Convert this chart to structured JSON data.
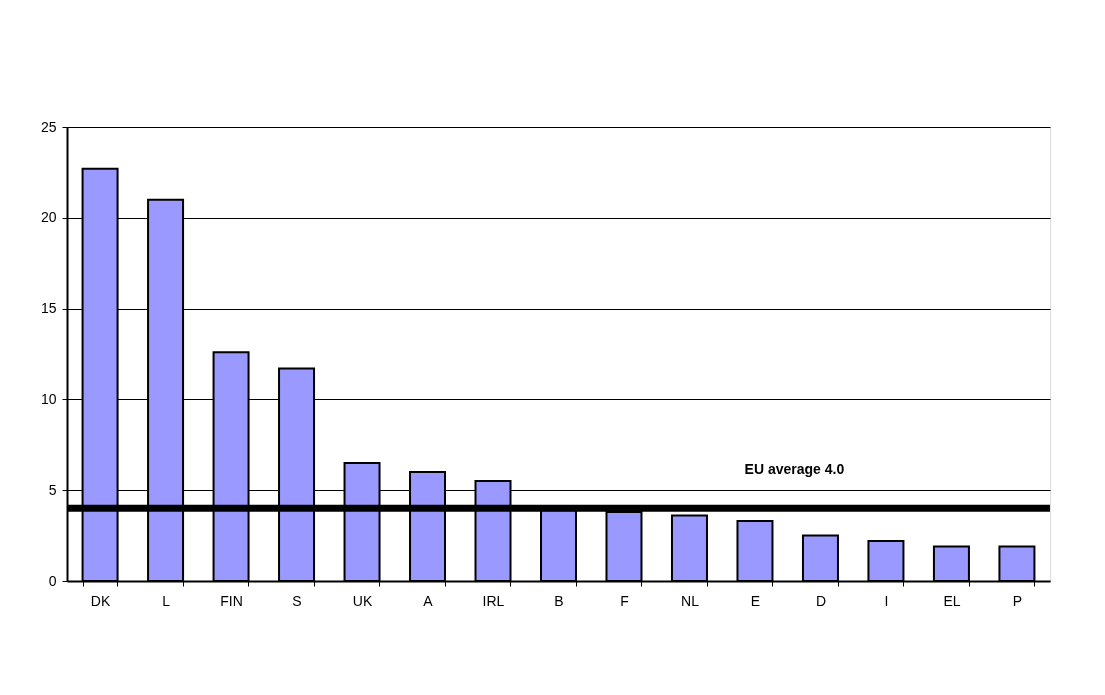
{
  "chart_data": {
    "type": "bar",
    "categories": [
      "DK",
      "L",
      "FIN",
      "S",
      "UK",
      "A",
      "IRL",
      "B",
      "F",
      "NL",
      "E",
      "D",
      "I",
      "EL",
      "P"
    ],
    "values": [
      22.7,
      21.0,
      12.6,
      11.7,
      6.5,
      6.0,
      5.5,
      3.9,
      3.8,
      3.6,
      3.3,
      2.5,
      2.2,
      1.9,
      1.9
    ],
    "color": "#9999ff",
    "ylim": [
      0,
      25
    ],
    "yticks": [
      0,
      5,
      10,
      15,
      20,
      25
    ],
    "grid": "y",
    "ref_lines": [
      {
        "axis": "y",
        "value": 4.0,
        "label": "EU average 4.0",
        "color": "#000000"
      }
    ]
  }
}
